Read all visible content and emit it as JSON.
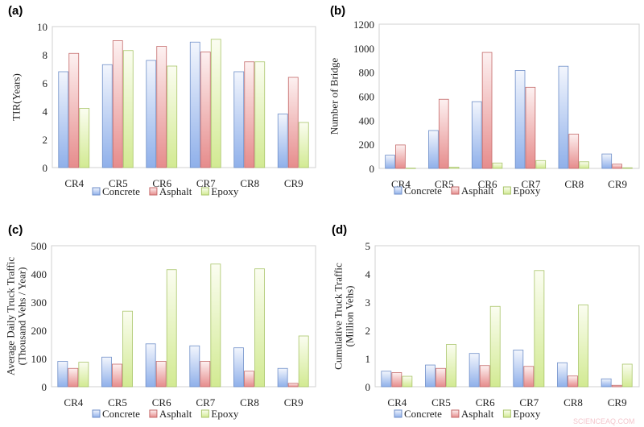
{
  "colors": {
    "Concrete": "#9db8e8",
    "Asphalt": "#e89a9a",
    "Epoxy": "#d6ec9c"
  },
  "watermark": "SCIENCEAQ.COM",
  "chart_data": [
    {
      "panel": "(a)",
      "type": "bar",
      "categories": [
        "CR4",
        "CR5",
        "CR6",
        "CR7",
        "CR8",
        "CR9"
      ],
      "ylabel": [
        "TIR(Years)"
      ],
      "ylim": [
        0,
        10
      ],
      "yticks": [
        0,
        2,
        4,
        6,
        8,
        10
      ],
      "legend": "bottom",
      "grid": false,
      "series": [
        {
          "name": "Concrete",
          "values": [
            6.8,
            7.3,
            7.6,
            8.9,
            6.8,
            3.8
          ]
        },
        {
          "name": "Asphalt",
          "values": [
            8.1,
            9.0,
            8.6,
            8.2,
            7.5,
            6.4
          ]
        },
        {
          "name": "Epoxy",
          "values": [
            4.2,
            8.3,
            7.2,
            9.1,
            7.5,
            3.2
          ]
        }
      ]
    },
    {
      "panel": "(b)",
      "type": "bar",
      "categories": [
        "CR4",
        "CR5",
        "CR6",
        "CR7",
        "CR8",
        "CR9"
      ],
      "ylabel": [
        "Number of Bridge"
      ],
      "ylim": [
        0,
        1200
      ],
      "yticks": [
        0,
        200,
        400,
        600,
        800,
        1000,
        1200
      ],
      "legend": "bottom",
      "grid": false,
      "series": [
        {
          "name": "Concrete",
          "values": [
            110,
            315,
            555,
            815,
            850,
            120
          ]
        },
        {
          "name": "Asphalt",
          "values": [
            195,
            575,
            965,
            675,
            285,
            35
          ]
        },
        {
          "name": "Epoxy",
          "values": [
            2,
            10,
            45,
            65,
            55,
            5
          ]
        }
      ]
    },
    {
      "panel": "(c)",
      "type": "bar",
      "categories": [
        "CR4",
        "CR5",
        "CR6",
        "CR7",
        "CR8",
        "CR9"
      ],
      "ylabel": [
        "Average Daily Truck Traffic",
        "(Thousand Vehs / Year)"
      ],
      "ylim": [
        0,
        500
      ],
      "yticks": [
        0,
        100,
        200,
        300,
        400,
        500
      ],
      "legend": "bottom",
      "grid": false,
      "series": [
        {
          "name": "Concrete",
          "values": [
            90,
            105,
            152,
            145,
            138,
            65
          ]
        },
        {
          "name": "Asphalt",
          "values": [
            65,
            80,
            90,
            90,
            55,
            12
          ]
        },
        {
          "name": "Epoxy",
          "values": [
            87,
            268,
            415,
            435,
            418,
            180
          ]
        }
      ]
    },
    {
      "panel": "(d)",
      "type": "bar",
      "categories": [
        "CR4",
        "CR5",
        "CR6",
        "CR7",
        "CR8",
        "CR9"
      ],
      "ylabel": [
        "Cumulative Truck Traffic",
        "(Million Vehs)"
      ],
      "ylim": [
        0,
        5
      ],
      "yticks": [
        0,
        1,
        2,
        3,
        4,
        5
      ],
      "legend": "bottom",
      "grid": false,
      "series": [
        {
          "name": "Concrete",
          "values": [
            0.55,
            0.77,
            1.18,
            1.3,
            0.85,
            0.28
          ]
        },
        {
          "name": "Asphalt",
          "values": [
            0.5,
            0.65,
            0.75,
            0.72,
            0.38,
            0.05
          ]
        },
        {
          "name": "Epoxy",
          "values": [
            0.37,
            1.5,
            2.85,
            4.12,
            2.9,
            0.8
          ]
        }
      ]
    }
  ]
}
